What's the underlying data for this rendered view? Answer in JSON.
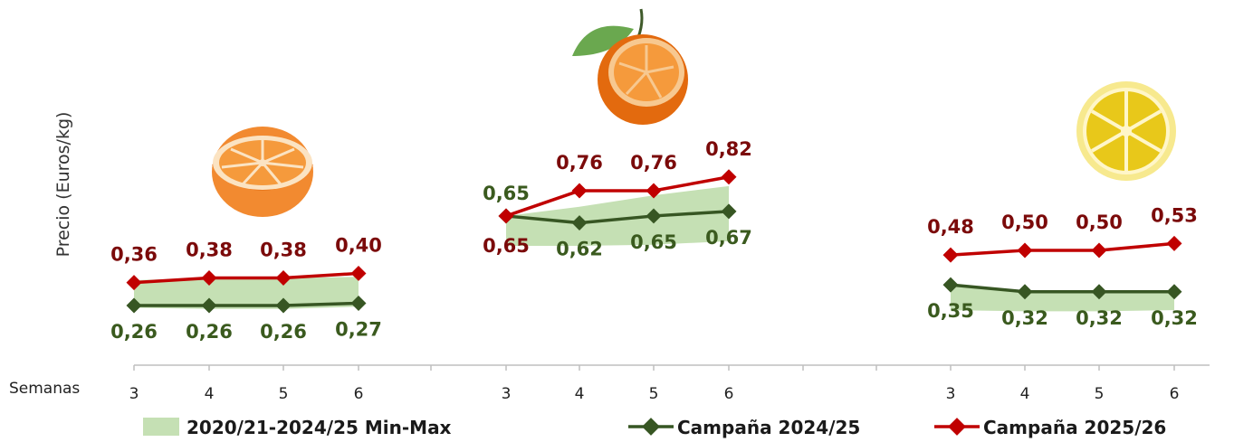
{
  "chart_data": {
    "type": "line",
    "ylabel": "Precio (Euros/kg)",
    "xlabel": "Semanas",
    "ylim": [
      0.15,
      0.95
    ],
    "colors": {
      "band": "#c5e0b4",
      "series_2024": "#375623",
      "series_2025": "#c00000",
      "label_2024": "#3a5a1e",
      "label_2025": "#7b0a0a"
    },
    "legend": {
      "position": "bottom",
      "entries": [
        "2020/21-2024/25 Min-Max",
        "Campaña 2024/25",
        "Campaña 2025/26"
      ]
    },
    "groups": [
      {
        "icon": "orange-half-icon",
        "weeks": [
          "3",
          "4",
          "5",
          "6"
        ],
        "band_min": [
          0.25,
          0.245,
          0.245,
          0.255
        ],
        "band_max": [
          0.37,
          0.38,
          0.38,
          0.385
        ],
        "series": [
          {
            "name": "Campaña 2024/25",
            "values": [
              0.26,
              0.26,
              0.26,
              0.27
            ],
            "labels": [
              "0,26",
              "0,26",
              "0,26",
              "0,27"
            ]
          },
          {
            "name": "Campaña 2025/26",
            "values": [
              0.36,
              0.38,
              0.38,
              0.4
            ],
            "labels": [
              "0,36",
              "0,38",
              "0,38",
              "0,40"
            ]
          }
        ]
      },
      {
        "icon": "mandarin-icon",
        "weeks": [
          "3",
          "4",
          "5",
          "6"
        ],
        "band_min": [
          0.52,
          0.52,
          0.525,
          0.54
        ],
        "band_max": [
          0.65,
          0.69,
          0.74,
          0.78
        ],
        "series": [
          {
            "name": "Campaña 2024/25",
            "values": [
              0.65,
              0.62,
              0.65,
              0.67
            ],
            "labels": [
              "0,65",
              "0,62",
              "0,65",
              "0,67"
            ]
          },
          {
            "name": "Campaña 2025/26",
            "values": [
              0.65,
              0.76,
              0.76,
              0.82
            ],
            "labels": [
              "0,65",
              "0,76",
              "0,76",
              "0,82"
            ]
          }
        ]
      },
      {
        "icon": "lemon-slice-icon",
        "weeks": [
          "3",
          "4",
          "5",
          "6"
        ],
        "band_min": [
          0.24,
          0.235,
          0.235,
          0.24
        ],
        "band_max": [
          0.35,
          0.32,
          0.32,
          0.32
        ],
        "series": [
          {
            "name": "Campaña 2024/25",
            "values": [
              0.35,
              0.32,
              0.32,
              0.32
            ],
            "labels": [
              "0,35",
              "0,32",
              "0,32",
              "0,32"
            ]
          },
          {
            "name": "Campaña 2025/26",
            "values": [
              0.48,
              0.5,
              0.5,
              0.53
            ],
            "labels": [
              "0,48",
              "0,50",
              "0,50",
              "0,53"
            ]
          }
        ]
      }
    ]
  }
}
